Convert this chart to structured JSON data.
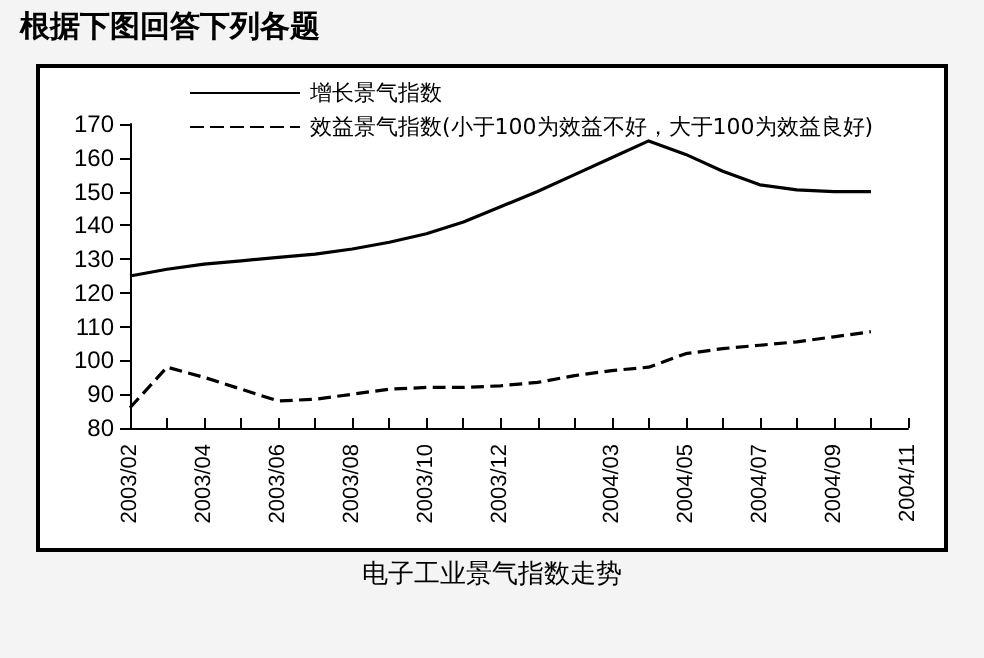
{
  "chart_data": {
    "type": "line",
    "title": "根据下图回答下列各题",
    "annotations": [
      "电子工业景气指数走势"
    ],
    "categories": [
      "2003/02",
      null,
      "2003/04",
      null,
      "2003/06",
      null,
      "2003/08",
      null,
      "2003/10",
      null,
      "2003/12",
      null,
      null,
      "2004/03",
      null,
      "2004/05",
      null,
      "2004/07",
      null,
      "2004/09",
      null,
      "2004/11"
    ],
    "series": [
      {
        "name": "增长景气指数",
        "color": "#000000",
        "line_style": "solid",
        "values": [
          125,
          127,
          128.5,
          129.5,
          130.5,
          131.5,
          133,
          135,
          137.5,
          141,
          145.5,
          150,
          155,
          160,
          165,
          161,
          156,
          152,
          150.5,
          150,
          150,
          null
        ]
      },
      {
        "name": "效益景气指数(小于100为效益不好，大于100为效益良好)",
        "color": "#000000",
        "line_style": "dashed",
        "values": [
          86,
          98,
          95,
          91.5,
          88,
          88.5,
          90,
          91.5,
          92,
          92,
          92.5,
          93.5,
          95.5,
          97,
          98,
          102,
          103.5,
          104.5,
          105.5,
          107,
          108.5,
          null
        ]
      }
    ],
    "ylim": [
      80,
      170
    ],
    "yticks": [
      80,
      90,
      100,
      110,
      120,
      130,
      140,
      150,
      160,
      170
    ],
    "grid": false,
    "legend": "top left",
    "marker": "none"
  }
}
